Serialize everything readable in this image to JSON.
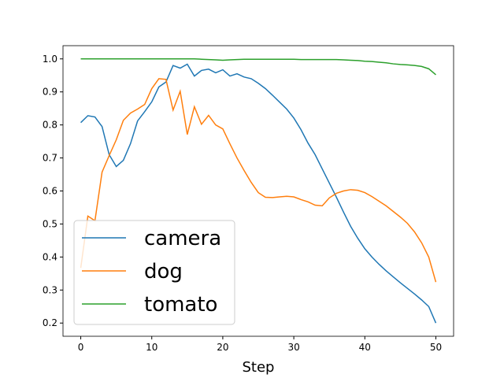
{
  "chart_data": {
    "type": "line",
    "xlabel": "Step",
    "x": [
      0,
      1,
      2,
      3,
      4,
      5,
      6,
      7,
      8,
      9,
      10,
      11,
      12,
      13,
      14,
      15,
      16,
      17,
      18,
      19,
      20,
      21,
      22,
      23,
      24,
      25,
      26,
      27,
      28,
      29,
      30,
      31,
      32,
      33,
      34,
      35,
      36,
      37,
      38,
      39,
      40,
      41,
      42,
      43,
      44,
      45,
      46,
      47,
      48,
      49,
      50
    ],
    "series": [
      {
        "name": "camera",
        "color": "#1f77b4",
        "values": [
          0.807,
          0.828,
          0.824,
          0.795,
          0.71,
          0.674,
          0.693,
          0.743,
          0.812,
          0.84,
          0.87,
          0.915,
          0.93,
          0.98,
          0.972,
          0.984,
          0.948,
          0.965,
          0.969,
          0.958,
          0.967,
          0.948,
          0.955,
          0.945,
          0.94,
          0.926,
          0.91,
          0.89,
          0.869,
          0.848,
          0.821,
          0.786,
          0.745,
          0.71,
          0.667,
          0.624,
          0.581,
          0.536,
          0.493,
          0.457,
          0.425,
          0.4,
          0.378,
          0.358,
          0.34,
          0.322,
          0.305,
          0.288,
          0.27,
          0.25,
          0.2
        ]
      },
      {
        "name": "dog",
        "color": "#ff7f0e",
        "values": [
          0.367,
          0.524,
          0.51,
          0.657,
          0.707,
          0.755,
          0.814,
          0.836,
          0.848,
          0.862,
          0.91,
          0.94,
          0.938,
          0.845,
          0.902,
          0.771,
          0.855,
          0.802,
          0.829,
          0.8,
          0.788,
          0.743,
          0.7,
          0.662,
          0.626,
          0.595,
          0.581,
          0.58,
          0.582,
          0.584,
          0.582,
          0.574,
          0.567,
          0.557,
          0.555,
          0.579,
          0.593,
          0.6,
          0.604,
          0.602,
          0.595,
          0.583,
          0.569,
          0.555,
          0.538,
          0.521,
          0.502,
          0.476,
          0.443,
          0.4,
          0.324
        ]
      },
      {
        "name": "tomato",
        "color": "#2ca02c",
        "values": [
          1.0,
          1.0,
          1.0,
          1.0,
          1.0,
          1.0,
          1.0,
          1.0,
          1.0,
          1.0,
          1.0,
          1.0,
          1.0,
          1.0,
          1.0,
          1.0,
          1.0,
          0.999,
          0.998,
          0.997,
          0.996,
          0.997,
          0.998,
          0.999,
          0.999,
          0.999,
          0.999,
          0.999,
          0.999,
          0.999,
          0.999,
          0.998,
          0.998,
          0.998,
          0.998,
          0.998,
          0.998,
          0.997,
          0.996,
          0.995,
          0.993,
          0.992,
          0.99,
          0.988,
          0.985,
          0.983,
          0.982,
          0.98,
          0.977,
          0.97,
          0.952
        ]
      }
    ],
    "xlim": [
      -2.5,
      52.5
    ],
    "xticks": [
      0,
      10,
      20,
      30,
      40,
      50
    ],
    "ylim": [
      0.16,
      1.04
    ],
    "yticks": [
      0.2,
      0.3,
      0.4,
      0.5,
      0.6,
      0.7,
      0.8,
      0.9,
      {
        "value": 1.0,
        "label": "1.0"
      }
    ],
    "legend": "lower left",
    "grid": false
  }
}
